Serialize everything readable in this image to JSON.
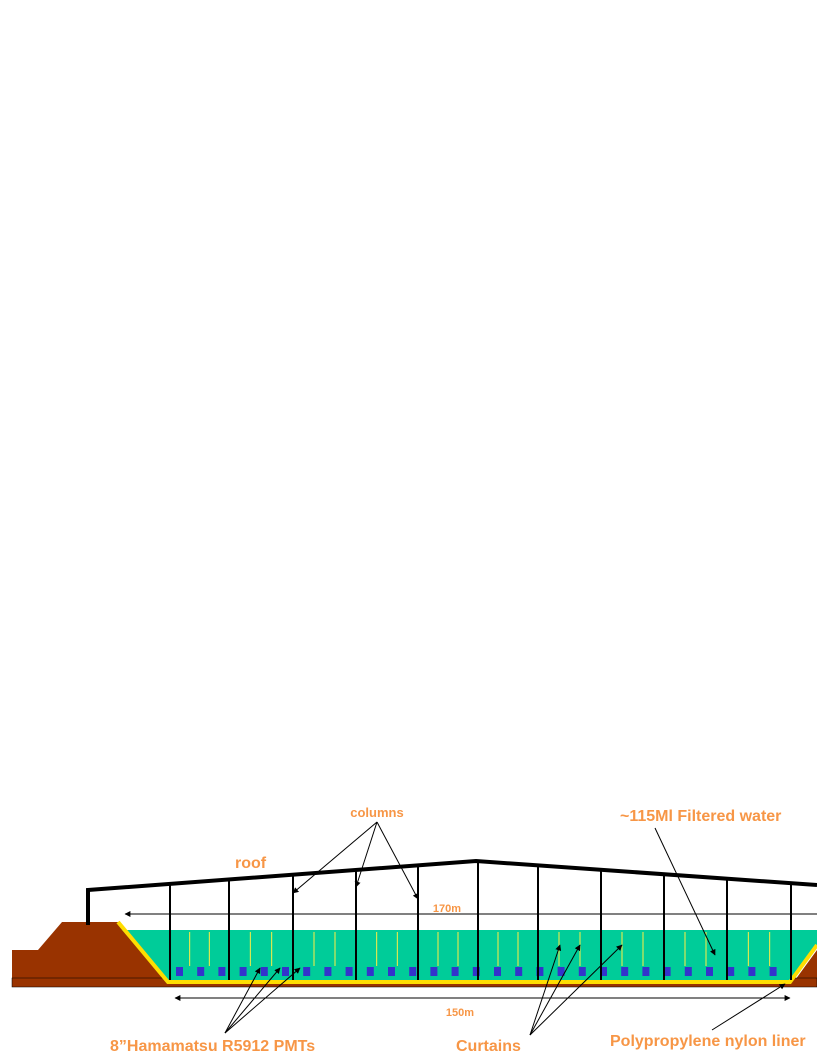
{
  "labels": {
    "columns": "columns",
    "water": "~115Ml Filtered water",
    "roof": "roof",
    "width_top": "170m",
    "width_bottom": "150m",
    "pmts": "8”Hamamatsu R5912 PMTs",
    "curtains": "Curtains",
    "liner": "Polypropylene nylon liner"
  }
}
